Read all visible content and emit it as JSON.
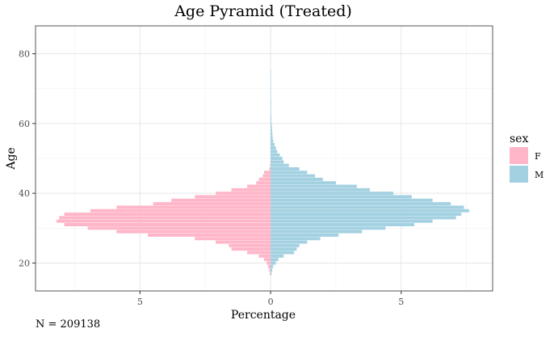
{
  "chart_data": {
    "type": "bar",
    "orientation": "horizontal-pyramid",
    "title": "Age Pyramid (Treated)",
    "xlabel": "Percentage",
    "ylabel": "Age",
    "caption": "N = 209138",
    "xlim": [
      -9.0,
      8.5
    ],
    "ylim": [
      12,
      88
    ],
    "x_ticks": [
      -5,
      0,
      5
    ],
    "x_tick_labels": [
      "5",
      "0",
      "5"
    ],
    "y_ticks": [
      20,
      40,
      60,
      80
    ],
    "y_tick_labels": [
      "20",
      "40",
      "60",
      "80"
    ],
    "grid": true,
    "legend": {
      "title": "sex",
      "position": "right",
      "entries": [
        "F",
        "M"
      ]
    },
    "colors": {
      "F": "#ffb6c8",
      "M": "#a3d1e1"
    },
    "ages": [
      17,
      18,
      19,
      20,
      21,
      22,
      23,
      24,
      25,
      26,
      27,
      28,
      29,
      30,
      31,
      32,
      33,
      34,
      35,
      36,
      37,
      38,
      39,
      40,
      41,
      42,
      43,
      44,
      45,
      46,
      47,
      48,
      49,
      50,
      51,
      52,
      53,
      54,
      55,
      56,
      57,
      58,
      59,
      60,
      61,
      62,
      63,
      64,
      65,
      66,
      67,
      68,
      69,
      70,
      71,
      72,
      73,
      74,
      75
    ],
    "series": [
      {
        "name": "F",
        "values": [
          0.03,
          0.05,
          0.1,
          0.15,
          0.25,
          0.45,
          0.9,
          1.5,
          1.6,
          2.1,
          2.9,
          4.7,
          5.9,
          7.0,
          7.9,
          8.2,
          8.1,
          7.9,
          6.9,
          5.9,
          4.5,
          3.8,
          2.9,
          2.1,
          1.5,
          0.9,
          0.55,
          0.45,
          0.3,
          0.25,
          0.05,
          0.02,
          0.01,
          0,
          0,
          0,
          0,
          0,
          0,
          0,
          0,
          0,
          0,
          0,
          0,
          0,
          0,
          0,
          0,
          0,
          0,
          0,
          0,
          0,
          0,
          0,
          0,
          0,
          0
        ]
      },
      {
        "name": "M",
        "values": [
          0.04,
          0.06,
          0.1,
          0.2,
          0.3,
          0.5,
          0.9,
          1.0,
          1.1,
          1.4,
          1.9,
          2.6,
          3.5,
          4.4,
          5.5,
          6.2,
          7.1,
          7.3,
          7.6,
          7.4,
          6.9,
          6.2,
          5.4,
          4.7,
          3.8,
          3.3,
          2.5,
          2.0,
          1.7,
          1.4,
          1.1,
          0.7,
          0.5,
          0.45,
          0.35,
          0.25,
          0.2,
          0.15,
          0.1,
          0.08,
          0.07,
          0.06,
          0.05,
          0.04,
          0.03,
          0.03,
          0.02,
          0.02,
          0.02,
          0.02,
          0.01,
          0.01,
          0.01,
          0.01,
          0.01,
          0.01,
          0.01,
          0.01,
          0.01
        ]
      }
    ]
  }
}
